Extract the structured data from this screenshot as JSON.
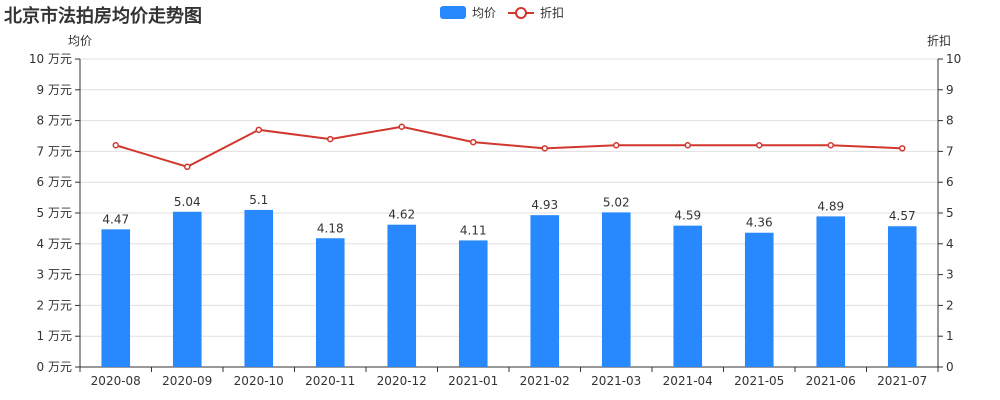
{
  "title": "北京市法拍房均价走势图",
  "legend": [
    {
      "name": "均价",
      "type": "bar"
    },
    {
      "name": "折扣",
      "type": "line"
    }
  ],
  "chart_data": {
    "type": "bar",
    "title": "北京市法拍房均价走势图",
    "categories": [
      "2020-08",
      "2020-09",
      "2020-10",
      "2020-11",
      "2020-12",
      "2021-01",
      "2021-02",
      "2021-03",
      "2021-04",
      "2021-05",
      "2021-06",
      "2021-07"
    ],
    "series": [
      {
        "name": "均价",
        "type": "bar",
        "axis": "left",
        "color": "#2889ff",
        "values": [
          4.47,
          5.04,
          5.1,
          4.18,
          4.62,
          4.11,
          4.93,
          5.02,
          4.59,
          4.36,
          4.89,
          4.57
        ],
        "data_labels": [
          "4.47",
          "5.04",
          "5.1",
          "4.18",
          "4.62",
          "4.11",
          "4.93",
          "5.02",
          "4.59",
          "4.36",
          "4.89",
          "4.57"
        ]
      },
      {
        "name": "折扣",
        "type": "line",
        "axis": "right",
        "color": "#d2372e",
        "values": [
          7.2,
          6.5,
          7.7,
          7.4,
          7.8,
          7.3,
          7.1,
          7.2,
          7.2,
          7.2,
          7.2,
          7.1
        ]
      }
    ],
    "y_left": {
      "name": "均价",
      "min": 0,
      "max": 10,
      "ticks": [
        "0 万元",
        "1 万元",
        "2 万元",
        "3 万元",
        "4 万元",
        "5 万元",
        "6 万元",
        "7 万元",
        "8 万元",
        "9 万元",
        "10 万元"
      ]
    },
    "y_right": {
      "name": "折扣",
      "min": 0,
      "max": 10,
      "ticks": [
        "0",
        "1",
        "2",
        "3",
        "4",
        "5",
        "6",
        "7",
        "8",
        "9",
        "10"
      ]
    },
    "grid": true,
    "legend_position": "top-center"
  }
}
